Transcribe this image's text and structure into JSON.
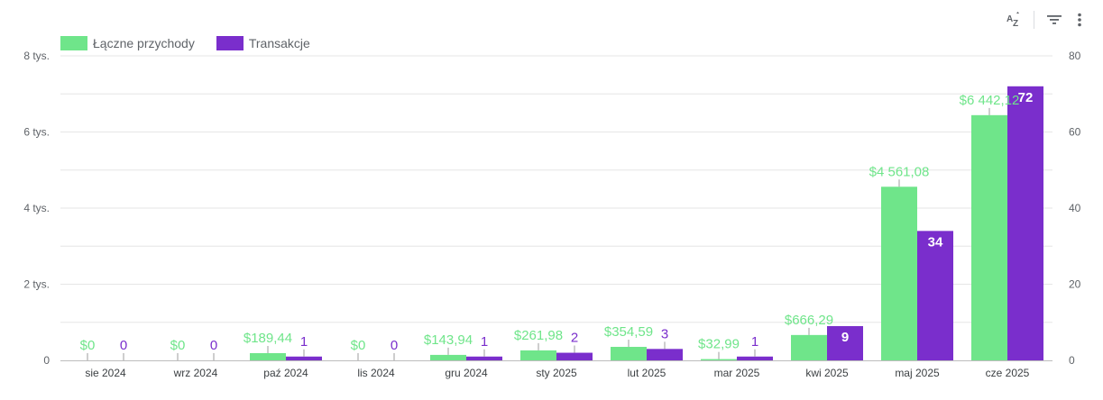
{
  "toolbar": {
    "sort_icon": "sort-az-icon",
    "filter_icon": "filter-icon",
    "more_icon": "more-vert-icon"
  },
  "colors": {
    "revenue": "#6fe58a",
    "transactions": "#7a2ecc",
    "grid": "#e6e6e6",
    "axis_text": "#5f6368"
  },
  "chart_data": {
    "type": "bar",
    "categories": [
      "sie 2024",
      "wrz 2024",
      "paź 2024",
      "lis 2024",
      "gru 2024",
      "sty 2025",
      "lut 2025",
      "mar 2025",
      "kwi 2025",
      "maj 2025",
      "cze 2025"
    ],
    "series": [
      {
        "name": "Łączne przychody",
        "axis": "left",
        "values": [
          0,
          0,
          189.44,
          0,
          143.94,
          261.98,
          354.59,
          32.99,
          666.29,
          4561.08,
          6442.12
        ],
        "labels": [
          "$0",
          "$0",
          "$189,44",
          "$0",
          "$143,94",
          "$261,98",
          "$354,59",
          "$32,99",
          "$666,29",
          "$4 561,08",
          "$6 442,12"
        ]
      },
      {
        "name": "Transakcje",
        "axis": "right",
        "values": [
          0,
          0,
          1,
          0,
          1,
          2,
          3,
          1,
          9,
          34,
          72
        ],
        "labels": [
          "0",
          "0",
          "1",
          "0",
          "1",
          "2",
          "3",
          "1",
          "9",
          "34",
          "72"
        ]
      }
    ],
    "y_left": {
      "ylim": [
        0,
        8000
      ],
      "ticks": [
        0,
        2000,
        4000,
        6000,
        8000
      ],
      "tick_labels": [
        "0",
        "2 tys.",
        "4 tys.",
        "6 tys.",
        "8 tys."
      ]
    },
    "y_right": {
      "ylim": [
        0,
        80
      ],
      "ticks": [
        0,
        20,
        40,
        60,
        80
      ],
      "tick_labels": [
        "0",
        "20",
        "40",
        "60",
        "80"
      ]
    },
    "grid": true,
    "legend": "top-left"
  }
}
